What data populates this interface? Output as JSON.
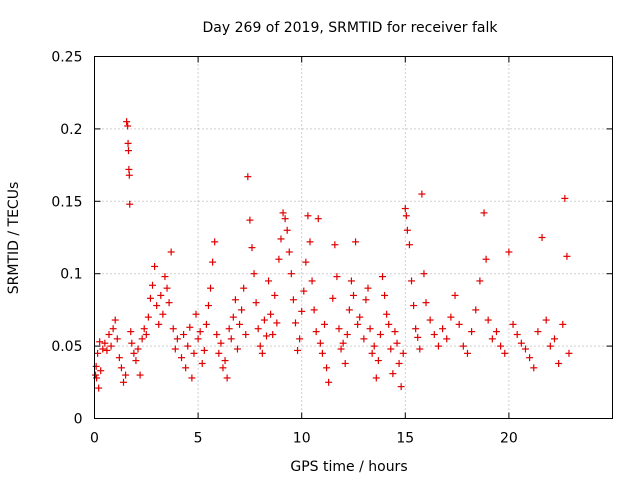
{
  "chart_data": {
    "type": "scatter",
    "title": "Day 269 of 2019, SRMTID for receiver falk",
    "xlabel": "GPS time / hours",
    "ylabel": "SRMTID / TECUs",
    "xlim": [
      0,
      25
    ],
    "ylim": [
      0,
      0.25
    ],
    "x_ticks": [
      0,
      5,
      10,
      15,
      20
    ],
    "x_tick_labels": [
      "0",
      "5",
      "10",
      "15",
      "20"
    ],
    "y_ticks": [
      0,
      0.05,
      0.1,
      0.15,
      0.2,
      0.25
    ],
    "y_tick_labels": [
      "0",
      "0.05",
      "0.1",
      "0.15",
      "0.2",
      "0.25"
    ],
    "grid": true,
    "marker": "+",
    "colors": {
      "series": "#e00000",
      "grid": "#a0a0a0",
      "axes": "#000000"
    },
    "series": [
      {
        "name": "SRMTID",
        "points": [
          [
            0.05,
            0.03
          ],
          [
            0.08,
            0.036
          ],
          [
            0.1,
            0.028
          ],
          [
            0.15,
            0.045
          ],
          [
            0.2,
            0.021
          ],
          [
            0.25,
            0.053
          ],
          [
            0.3,
            0.033
          ],
          [
            0.4,
            0.048
          ],
          [
            0.5,
            0.052
          ],
          [
            0.6,
            0.047
          ],
          [
            0.7,
            0.058
          ],
          [
            0.8,
            0.05
          ],
          [
            0.9,
            0.062
          ],
          [
            1.0,
            0.068
          ],
          [
            1.1,
            0.055
          ],
          [
            1.2,
            0.042
          ],
          [
            1.3,
            0.035
          ],
          [
            1.4,
            0.025
          ],
          [
            1.5,
            0.03
          ],
          [
            1.55,
            0.205
          ],
          [
            1.6,
            0.202
          ],
          [
            1.62,
            0.19
          ],
          [
            1.64,
            0.185
          ],
          [
            1.66,
            0.172
          ],
          [
            1.68,
            0.168
          ],
          [
            1.7,
            0.148
          ],
          [
            1.75,
            0.06
          ],
          [
            1.8,
            0.052
          ],
          [
            1.9,
            0.045
          ],
          [
            2.0,
            0.04
          ],
          [
            2.1,
            0.048
          ],
          [
            2.2,
            0.03
          ],
          [
            2.3,
            0.055
          ],
          [
            2.4,
            0.062
          ],
          [
            2.5,
            0.058
          ],
          [
            2.6,
            0.07
          ],
          [
            2.7,
            0.083
          ],
          [
            2.8,
            0.092
          ],
          [
            2.9,
            0.105
          ],
          [
            3.0,
            0.078
          ],
          [
            3.1,
            0.065
          ],
          [
            3.2,
            0.085
          ],
          [
            3.3,
            0.072
          ],
          [
            3.4,
            0.098
          ],
          [
            3.5,
            0.09
          ],
          [
            3.6,
            0.08
          ],
          [
            3.7,
            0.115
          ],
          [
            3.8,
            0.062
          ],
          [
            3.9,
            0.048
          ],
          [
            4.0,
            0.055
          ],
          [
            4.2,
            0.042
          ],
          [
            4.3,
            0.058
          ],
          [
            4.4,
            0.035
          ],
          [
            4.5,
            0.05
          ],
          [
            4.6,
            0.063
          ],
          [
            4.7,
            0.028
          ],
          [
            4.8,
            0.045
          ],
          [
            4.9,
            0.072
          ],
          [
            5.0,
            0.055
          ],
          [
            5.1,
            0.06
          ],
          [
            5.2,
            0.038
          ],
          [
            5.3,
            0.047
          ],
          [
            5.4,
            0.065
          ],
          [
            5.5,
            0.078
          ],
          [
            5.6,
            0.09
          ],
          [
            5.7,
            0.108
          ],
          [
            5.8,
            0.122
          ],
          [
            5.9,
            0.058
          ],
          [
            6.0,
            0.045
          ],
          [
            6.1,
            0.052
          ],
          [
            6.2,
            0.035
          ],
          [
            6.3,
            0.04
          ],
          [
            6.4,
            0.028
          ],
          [
            6.5,
            0.062
          ],
          [
            6.6,
            0.055
          ],
          [
            6.7,
            0.07
          ],
          [
            6.8,
            0.082
          ],
          [
            6.9,
            0.048
          ],
          [
            7.0,
            0.065
          ],
          [
            7.1,
            0.075
          ],
          [
            7.2,
            0.09
          ],
          [
            7.3,
            0.058
          ],
          [
            7.4,
            0.167
          ],
          [
            7.5,
            0.137
          ],
          [
            7.6,
            0.118
          ],
          [
            7.7,
            0.1
          ],
          [
            7.8,
            0.08
          ],
          [
            7.9,
            0.062
          ],
          [
            8.0,
            0.05
          ],
          [
            8.1,
            0.045
          ],
          [
            8.2,
            0.068
          ],
          [
            8.3,
            0.057
          ],
          [
            8.4,
            0.095
          ],
          [
            8.5,
            0.072
          ],
          [
            8.6,
            0.058
          ],
          [
            8.7,
            0.085
          ],
          [
            8.8,
            0.066
          ],
          [
            8.9,
            0.11
          ],
          [
            9.0,
            0.124
          ],
          [
            9.1,
            0.142
          ],
          [
            9.2,
            0.138
          ],
          [
            9.3,
            0.13
          ],
          [
            9.4,
            0.115
          ],
          [
            9.5,
            0.1
          ],
          [
            9.6,
            0.082
          ],
          [
            9.7,
            0.066
          ],
          [
            9.8,
            0.047
          ],
          [
            9.9,
            0.055
          ],
          [
            10.0,
            0.074
          ],
          [
            10.1,
            0.088
          ],
          [
            10.2,
            0.108
          ],
          [
            10.3,
            0.14
          ],
          [
            10.4,
            0.122
          ],
          [
            10.5,
            0.095
          ],
          [
            10.6,
            0.075
          ],
          [
            10.7,
            0.06
          ],
          [
            10.8,
            0.138
          ],
          [
            10.9,
            0.052
          ],
          [
            11.0,
            0.045
          ],
          [
            11.1,
            0.065
          ],
          [
            11.2,
            0.035
          ],
          [
            11.3,
            0.025
          ],
          [
            11.5,
            0.083
          ],
          [
            11.6,
            0.12
          ],
          [
            11.7,
            0.098
          ],
          [
            11.8,
            0.062
          ],
          [
            11.9,
            0.048
          ],
          [
            12.0,
            0.052
          ],
          [
            12.1,
            0.038
          ],
          [
            12.2,
            0.058
          ],
          [
            12.3,
            0.075
          ],
          [
            12.4,
            0.095
          ],
          [
            12.5,
            0.085
          ],
          [
            12.6,
            0.122
          ],
          [
            12.7,
            0.065
          ],
          [
            12.8,
            0.07
          ],
          [
            13.0,
            0.055
          ],
          [
            13.1,
            0.082
          ],
          [
            13.2,
            0.09
          ],
          [
            13.3,
            0.062
          ],
          [
            13.4,
            0.045
          ],
          [
            13.5,
            0.05
          ],
          [
            13.6,
            0.028
          ],
          [
            13.7,
            0.04
          ],
          [
            13.8,
            0.058
          ],
          [
            13.9,
            0.098
          ],
          [
            14.0,
            0.085
          ],
          [
            14.1,
            0.072
          ],
          [
            14.2,
            0.065
          ],
          [
            14.3,
            0.048
          ],
          [
            14.4,
            0.031
          ],
          [
            14.5,
            0.06
          ],
          [
            14.6,
            0.052
          ],
          [
            14.7,
            0.038
          ],
          [
            14.8,
            0.022
          ],
          [
            14.9,
            0.045
          ],
          [
            15.0,
            0.145
          ],
          [
            15.05,
            0.14
          ],
          [
            15.1,
            0.13
          ],
          [
            15.2,
            0.12
          ],
          [
            15.3,
            0.095
          ],
          [
            15.4,
            0.078
          ],
          [
            15.5,
            0.062
          ],
          [
            15.6,
            0.056
          ],
          [
            15.7,
            0.048
          ],
          [
            15.8,
            0.155
          ],
          [
            15.9,
            0.1
          ],
          [
            16.0,
            0.08
          ],
          [
            16.2,
            0.068
          ],
          [
            16.4,
            0.058
          ],
          [
            16.6,
            0.05
          ],
          [
            16.8,
            0.062
          ],
          [
            17.0,
            0.055
          ],
          [
            17.2,
            0.07
          ],
          [
            17.4,
            0.085
          ],
          [
            17.6,
            0.065
          ],
          [
            17.8,
            0.05
          ],
          [
            18.0,
            0.045
          ],
          [
            18.2,
            0.06
          ],
          [
            18.4,
            0.075
          ],
          [
            18.6,
            0.095
          ],
          [
            18.8,
            0.142
          ],
          [
            18.9,
            0.11
          ],
          [
            19.0,
            0.068
          ],
          [
            19.2,
            0.055
          ],
          [
            19.4,
            0.06
          ],
          [
            19.6,
            0.05
          ],
          [
            19.8,
            0.045
          ],
          [
            20.0,
            0.115
          ],
          [
            20.2,
            0.065
          ],
          [
            20.4,
            0.058
          ],
          [
            20.6,
            0.052
          ],
          [
            20.8,
            0.048
          ],
          [
            21.0,
            0.042
          ],
          [
            21.2,
            0.035
          ],
          [
            21.4,
            0.06
          ],
          [
            21.6,
            0.125
          ],
          [
            21.8,
            0.068
          ],
          [
            22.0,
            0.05
          ],
          [
            22.2,
            0.055
          ],
          [
            22.4,
            0.038
          ],
          [
            22.6,
            0.065
          ],
          [
            22.7,
            0.152
          ],
          [
            22.8,
            0.112
          ],
          [
            22.9,
            0.045
          ]
        ]
      }
    ]
  }
}
